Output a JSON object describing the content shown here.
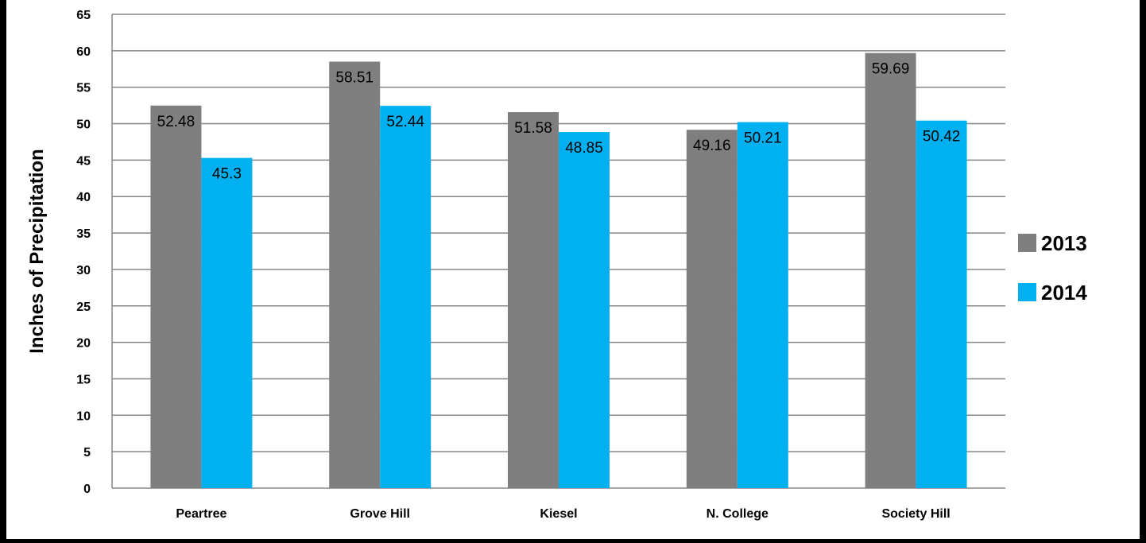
{
  "chart_data": {
    "type": "bar",
    "title": "",
    "xlabel": "",
    "ylabel": "Inches of Precipitation",
    "ylim": [
      0,
      65
    ],
    "yticks": [
      0,
      5,
      10,
      15,
      20,
      25,
      30,
      35,
      40,
      45,
      50,
      55,
      60,
      65
    ],
    "grid": true,
    "legend_position": "right",
    "categories": [
      "Peartree",
      "Grove Hill",
      "Kiesel",
      "N. College",
      "Society Hill"
    ],
    "series": [
      {
        "name": "2013",
        "color": "#7f7f7f",
        "values": [
          52.48,
          58.51,
          51.58,
          49.16,
          59.69
        ],
        "labels": [
          "52.48",
          "58.51",
          "51.58",
          "49.16",
          "59.69"
        ]
      },
      {
        "name": "2014",
        "color": "#00b0f0",
        "values": [
          45.3,
          52.44,
          48.85,
          50.21,
          50.42
        ],
        "labels": [
          "45.3",
          "52.44",
          "48.85",
          "50.21",
          "50.42"
        ]
      }
    ]
  }
}
